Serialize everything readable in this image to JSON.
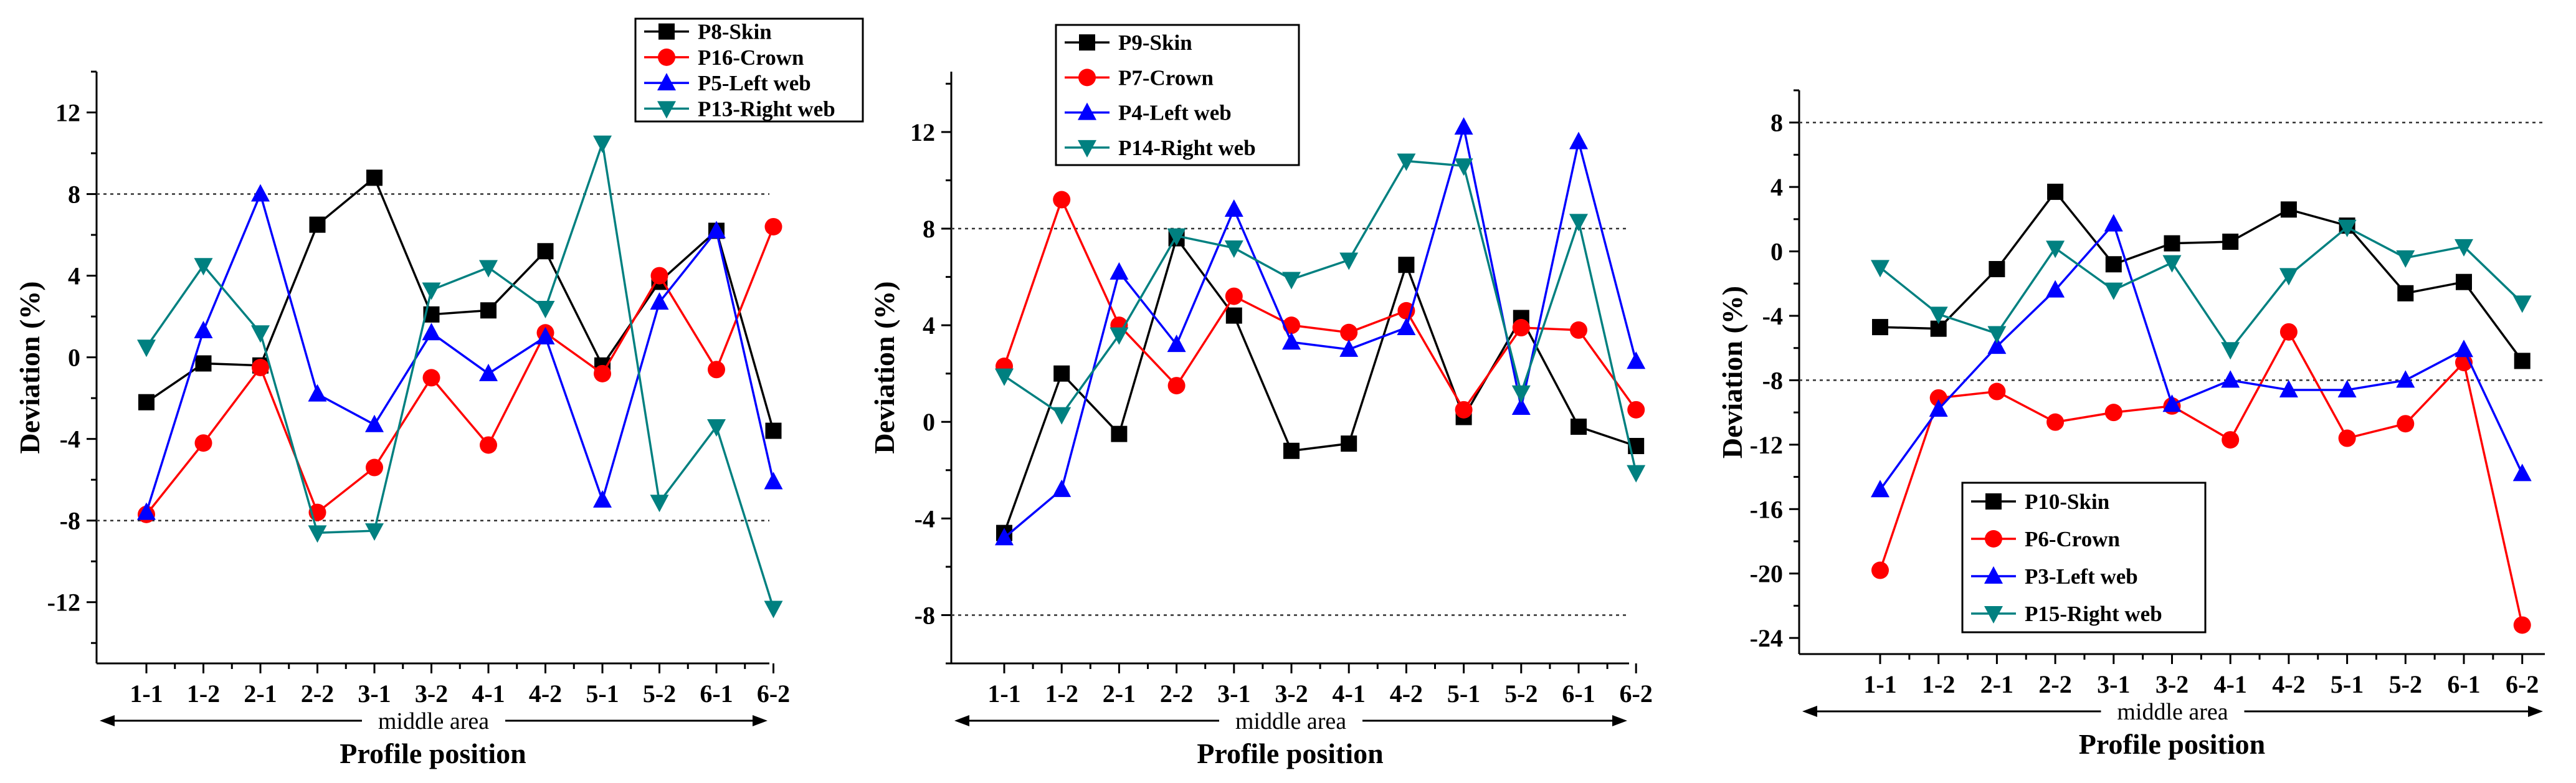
{
  "chart_data": [
    {
      "type": "line",
      "xlabel": "Profile position",
      "ylabel": "Deviation  (%)",
      "x_annotation": "middle area",
      "categories": [
        "1-1",
        "1-2",
        "2-1",
        "2-2",
        "3-1",
        "3-2",
        "4-1",
        "4-2",
        "5-1",
        "5-2",
        "6-1",
        "6-2"
      ],
      "ylim": [
        -15,
        14
      ],
      "yticks": [
        -12,
        -8,
        -4,
        0,
        4,
        8,
        12
      ],
      "reference_lines": [
        8,
        -8
      ],
      "legend_position": "top-right",
      "series": [
        {
          "name": "P8-Skin",
          "color": "#000000",
          "marker": "square",
          "values": [
            -2.2,
            -0.3,
            -0.4,
            6.5,
            8.8,
            2.1,
            2.3,
            5.2,
            -0.4,
            3.7,
            6.2,
            -3.6
          ]
        },
        {
          "name": "P16-Crown",
          "color": "#ff0000",
          "marker": "circle",
          "values": [
            -7.7,
            -4.2,
            -0.5,
            -7.6,
            -5.4,
            -1.0,
            -4.3,
            1.2,
            -0.8,
            4.0,
            -0.6,
            6.4
          ]
        },
        {
          "name": "P5-Left web",
          "color": "#0000ff",
          "marker": "triangle-up",
          "values": [
            -7.6,
            1.3,
            8.0,
            -1.8,
            -3.3,
            1.2,
            -0.8,
            1.0,
            -7.0,
            2.7,
            6.2,
            -6.1
          ]
        },
        {
          "name": "P13-Right web",
          "color": "#008080",
          "marker": "triangle-down",
          "values": [
            0.5,
            4.5,
            1.2,
            -8.6,
            -8.5,
            3.3,
            4.4,
            2.4,
            10.5,
            -7.1,
            -3.4,
            -12.3
          ]
        }
      ]
    },
    {
      "type": "line",
      "xlabel": "Profile position",
      "ylabel": "Deviation  (%)",
      "x_annotation": "middle area",
      "categories": [
        "1-1",
        "1-2",
        "2-1",
        "2-2",
        "3-1",
        "3-2",
        "4-1",
        "4-2",
        "5-1",
        "5-2",
        "6-1",
        "6-2"
      ],
      "ylim": [
        -10,
        14.5
      ],
      "yticks": [
        -8,
        -4,
        0,
        4,
        8,
        12
      ],
      "reference_lines": [
        8,
        -8
      ],
      "legend_position": "top-left",
      "series": [
        {
          "name": "P9-Skin",
          "color": "#000000",
          "marker": "square",
          "values": [
            -4.6,
            2.0,
            -0.5,
            7.6,
            4.4,
            -1.2,
            -0.9,
            6.5,
            0.2,
            4.3,
            -0.2,
            -1.0
          ]
        },
        {
          "name": "P7-Crown",
          "color": "#ff0000",
          "marker": "circle",
          "values": [
            2.3,
            9.2,
            4.0,
            1.5,
            5.2,
            4.0,
            3.7,
            4.6,
            0.5,
            3.9,
            3.8,
            0.5
          ]
        },
        {
          "name": "P4-Left web",
          "color": "#0000ff",
          "marker": "triangle-up",
          "values": [
            -4.8,
            -2.8,
            6.2,
            3.2,
            8.8,
            3.3,
            3.0,
            3.9,
            12.2,
            0.6,
            11.6,
            2.5
          ]
        },
        {
          "name": "P14-Right web",
          "color": "#008080",
          "marker": "triangle-down",
          "values": [
            1.9,
            0.3,
            3.6,
            7.7,
            7.2,
            5.9,
            6.7,
            10.8,
            10.6,
            1.2,
            8.3,
            -2.1
          ]
        }
      ]
    },
    {
      "type": "line",
      "xlabel": "Profile position",
      "ylabel": "Deviation  (%)",
      "x_annotation": "middle area",
      "categories": [
        "1-1",
        "1-2",
        "2-1",
        "2-2",
        "3-1",
        "3-2",
        "4-1",
        "4-2",
        "5-1",
        "5-2",
        "6-1",
        "6-2"
      ],
      "ylim": [
        -25,
        10
      ],
      "yticks": [
        -24,
        -20,
        -16,
        -12,
        -8,
        -4,
        0,
        4,
        8
      ],
      "reference_lines": [
        8,
        -8
      ],
      "legend_position": "bottom-left",
      "series": [
        {
          "name": "P10-Skin",
          "color": "#000000",
          "marker": "square",
          "values": [
            -4.7,
            -4.8,
            -1.1,
            3.7,
            -0.8,
            0.5,
            0.6,
            2.6,
            1.6,
            -2.6,
            -1.9,
            -6.8
          ]
        },
        {
          "name": "P6-Crown",
          "color": "#ff0000",
          "marker": "circle",
          "values": [
            -19.8,
            -9.1,
            -8.7,
            -10.6,
            -10.0,
            -9.6,
            -11.7,
            -5.0,
            -11.6,
            -10.7,
            -6.9,
            -23.2
          ]
        },
        {
          "name": "P3-Left web",
          "color": "#0000ff",
          "marker": "triangle-up",
          "values": [
            -14.8,
            -9.8,
            -5.9,
            -2.4,
            1.7,
            -9.5,
            -8.0,
            -8.6,
            -8.6,
            -8.0,
            -6.1,
            -13.8
          ]
        },
        {
          "name": "P15-Right web",
          "color": "#008080",
          "marker": "triangle-down",
          "values": [
            -1.0,
            -3.9,
            -5.1,
            0.2,
            -2.4,
            -0.7,
            -6.1,
            -1.5,
            1.5,
            -0.4,
            0.3,
            -3.2
          ]
        }
      ]
    }
  ]
}
